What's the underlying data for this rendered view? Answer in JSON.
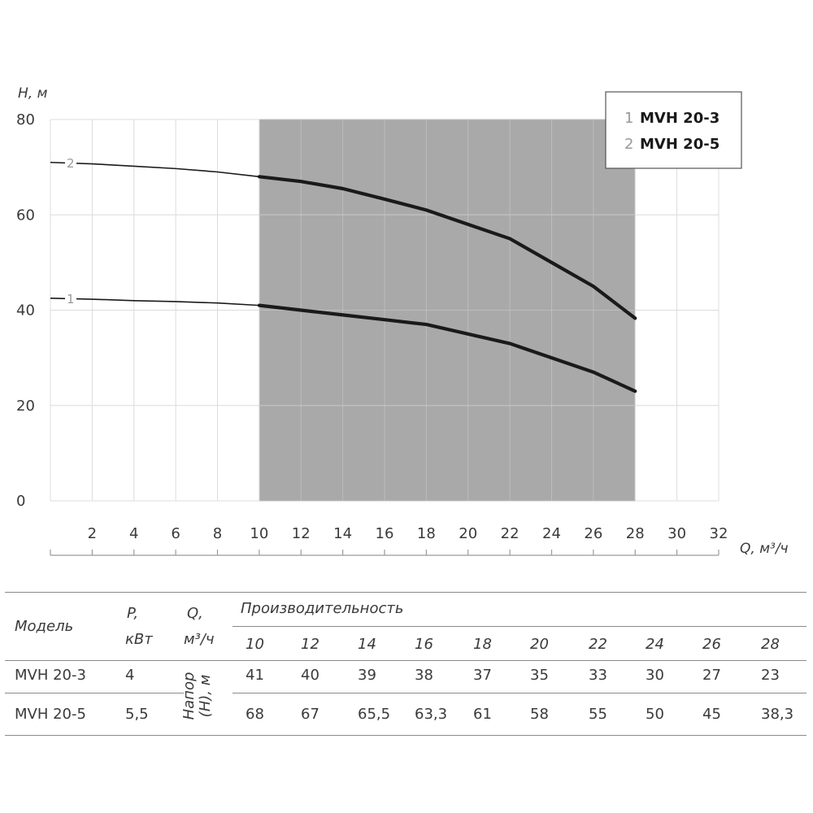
{
  "chart_data": {
    "type": "line",
    "ylabel": "H, м",
    "xlabel": "Q, м³/ч",
    "xlim": [
      0,
      32
    ],
    "ylim": [
      0,
      80
    ],
    "yticks": [
      0,
      20,
      40,
      60,
      80
    ],
    "xticks": [
      2,
      4,
      6,
      8,
      10,
      12,
      14,
      16,
      18,
      20,
      22,
      24,
      26,
      28,
      30,
      32
    ],
    "grid": true,
    "working_range": [
      10,
      28
    ],
    "legend": {
      "placement": "top-right",
      "entries": [
        {
          "num": "1",
          "name": "MVH 20-3"
        },
        {
          "num": "2",
          "name": "MVH 20-5"
        }
      ]
    },
    "series": [
      {
        "name": "MVH 20-3",
        "label": "1",
        "x": [
          0,
          2,
          4,
          6,
          8,
          10,
          12,
          14,
          16,
          18,
          20,
          22,
          24,
          26,
          28
        ],
        "values": [
          42.5,
          42.3,
          42,
          41.8,
          41.5,
          41,
          40,
          39,
          38,
          37,
          35,
          33,
          30,
          27,
          23
        ]
      },
      {
        "name": "MVH 20-5",
        "label": "2",
        "x": [
          0,
          2,
          4,
          6,
          8,
          10,
          12,
          14,
          16,
          18,
          20,
          22,
          24,
          26,
          28
        ],
        "values": [
          71,
          70.7,
          70.2,
          69.7,
          69,
          68,
          67,
          65.5,
          63.3,
          61,
          58,
          55,
          50,
          45,
          38.3
        ]
      }
    ],
    "colors": {
      "curve": "#1a1a1a",
      "grid": "#dcdcdc",
      "working_range": "#a9a9a9",
      "legend_border": "#555555"
    }
  },
  "table": {
    "col_model": "Модель",
    "col_power": [
      "P,",
      "кВт"
    ],
    "col_flow": [
      "Q,",
      "м³/ч"
    ],
    "group_header": "Производительность",
    "flows": [
      "10",
      "12",
      "14",
      "16",
      "18",
      "20",
      "22",
      "24",
      "26",
      "28"
    ],
    "head_label": [
      "Напор",
      "(H), м"
    ],
    "rows": [
      {
        "model": "MVH 20-3",
        "power": "4",
        "values": [
          "41",
          "40",
          "39",
          "38",
          "37",
          "35",
          "33",
          "30",
          "27",
          "23"
        ]
      },
      {
        "model": "MVH 20-5",
        "power": "5,5",
        "values": [
          "68",
          "67",
          "65,5",
          "63,3",
          "61",
          "58",
          "55",
          "50",
          "45",
          "38,3"
        ]
      }
    ]
  }
}
